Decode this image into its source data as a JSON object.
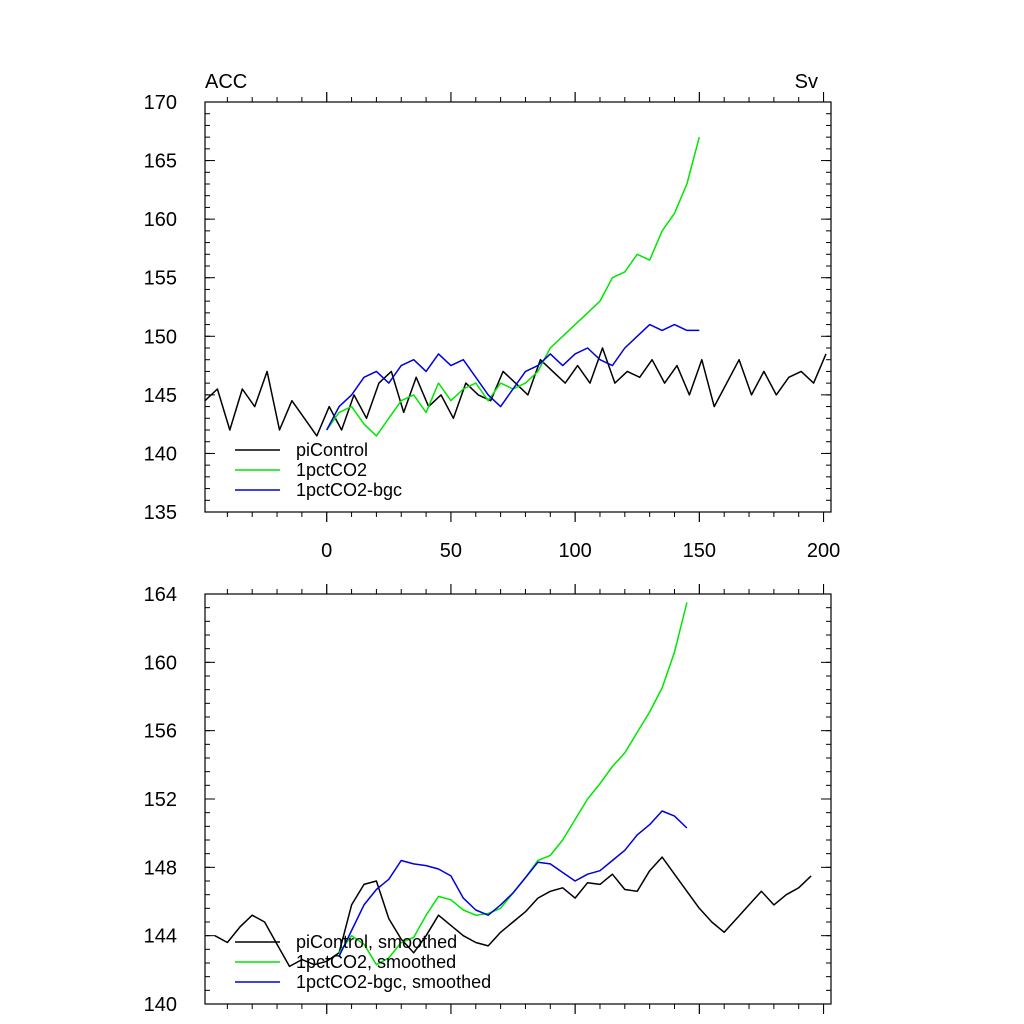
{
  "chart_data": [
    {
      "type": "line",
      "left_title": "ACC",
      "right_title": "Sv",
      "xlim": [
        -49,
        203
      ],
      "ylim": [
        135,
        170
      ],
      "xticks": [
        0,
        50,
        100,
        150,
        200
      ],
      "xtick_labels": [
        "0",
        "50",
        "100",
        "150",
        "200"
      ],
      "yticks": [
        135,
        140,
        145,
        150,
        155,
        160,
        165,
        170
      ],
      "ytick_labels": [
        "135",
        "140",
        "145",
        "150",
        "155",
        "160",
        "165",
        "170"
      ],
      "grid": false,
      "legend_position": "bottom-left",
      "series": [
        {
          "name": "piControl",
          "color": "#000000",
          "x": [
            -49,
            -44,
            -39,
            -34,
            -29,
            -24,
            -19,
            -14,
            -9,
            -4,
            1,
            6,
            11,
            16,
            21,
            26,
            31,
            36,
            41,
            46,
            51,
            56,
            61,
            66,
            71,
            76,
            81,
            86,
            91,
            96,
            101,
            106,
            111,
            116,
            121,
            126,
            131,
            136,
            141,
            146,
            151,
            156,
            161,
            166,
            171,
            176,
            181,
            186,
            191,
            196,
            201
          ],
          "y": [
            144.5,
            145.5,
            142,
            145.5,
            144,
            147,
            142,
            144.5,
            143,
            141.5,
            144,
            142,
            145,
            143,
            146,
            147,
            143.5,
            146.5,
            144,
            145,
            143,
            146,
            145,
            144.5,
            147,
            146,
            145,
            148,
            147,
            146,
            147.5,
            146,
            149,
            146,
            147,
            146.5,
            148,
            146,
            147.5,
            145,
            148,
            144,
            146,
            148,
            145,
            147,
            145,
            146.5,
            147,
            146,
            148.5
          ]
        },
        {
          "name": "1pctCO2",
          "color": "#00e600",
          "x": [
            0,
            5,
            10,
            15,
            20,
            25,
            30,
            35,
            40,
            45,
            50,
            55,
            60,
            65,
            70,
            75,
            80,
            85,
            90,
            95,
            100,
            105,
            110,
            115,
            120,
            125,
            130,
            135,
            140,
            145,
            150
          ],
          "y": [
            142,
            143.5,
            144,
            142.5,
            141.5,
            143,
            144.5,
            145,
            143.5,
            146,
            144.5,
            145.5,
            146,
            144.5,
            146,
            145.5,
            146,
            147,
            149,
            150,
            151,
            152,
            153,
            155,
            155.5,
            157,
            156.5,
            159,
            160.5,
            163,
            167
          ]
        },
        {
          "name": "1pctCO2-bgc",
          "color": "#0000dd",
          "x": [
            0,
            5,
            10,
            15,
            20,
            25,
            30,
            35,
            40,
            45,
            50,
            55,
            60,
            65,
            70,
            75,
            80,
            85,
            90,
            95,
            100,
            105,
            110,
            115,
            120,
            125,
            130,
            135,
            140,
            145,
            150
          ],
          "y": [
            142,
            144,
            145,
            146.5,
            147,
            146,
            147.5,
            148,
            147,
            148.5,
            147.5,
            148,
            146.5,
            145,
            144,
            145.5,
            147,
            147.5,
            148.5,
            147.5,
            148.5,
            149,
            148,
            147.5,
            149,
            150,
            151,
            150.5,
            151,
            150.5,
            150.5
          ]
        }
      ]
    },
    {
      "type": "line",
      "xlim": [
        -49,
        203
      ],
      "ylim": [
        140,
        164
      ],
      "xticks": [
        0,
        50,
        100,
        150,
        200
      ],
      "yticks": [
        140,
        144,
        148,
        152,
        156,
        160,
        164
      ],
      "ytick_labels": [
        "140",
        "144",
        "148",
        "152",
        "156",
        "160",
        "164"
      ],
      "grid": false,
      "legend_position": "bottom-left",
      "series": [
        {
          "name": "piControl, smoothed",
          "color": "#000000",
          "x": [
            -45,
            -40,
            -35,
            -30,
            -25,
            -20,
            -15,
            -10,
            -5,
            0,
            5,
            10,
            15,
            20,
            25,
            30,
            35,
            40,
            45,
            50,
            55,
            60,
            65,
            70,
            75,
            80,
            85,
            90,
            95,
            100,
            105,
            110,
            115,
            120,
            125,
            130,
            135,
            140,
            145,
            150,
            155,
            160,
            165,
            170,
            175,
            180,
            185,
            190,
            195
          ],
          "y": [
            144,
            143.6,
            144.5,
            145.2,
            144.8,
            143.5,
            142.2,
            142.6,
            142.3,
            142.5,
            143,
            145.8,
            147,
            147.2,
            145,
            143.8,
            143,
            144,
            145.2,
            144.6,
            144,
            143.6,
            143.4,
            144.2,
            144.8,
            145.4,
            146.2,
            146.6,
            146.8,
            146.2,
            147.1,
            147,
            147.6,
            146.7,
            146.6,
            147.8,
            148.6,
            147.6,
            146.6,
            145.6,
            144.8,
            144.2,
            145,
            145.8,
            146.6,
            145.8,
            146.4,
            146.8,
            147.5
          ]
        },
        {
          "name": "1pctCO2, smoothed",
          "color": "#00e600",
          "x": [
            5,
            10,
            15,
            20,
            25,
            30,
            35,
            40,
            45,
            50,
            55,
            60,
            65,
            70,
            75,
            80,
            85,
            90,
            95,
            100,
            105,
            110,
            115,
            120,
            125,
            130,
            135,
            140,
            145
          ],
          "y": [
            143,
            144,
            143.5,
            142.3,
            142.7,
            143.6,
            143.9,
            145.2,
            146.3,
            146.1,
            145.5,
            145.2,
            145.3,
            145.6,
            146.5,
            147.4,
            148.4,
            148.7,
            149.6,
            150.8,
            152,
            152.9,
            153.9,
            154.7,
            155.9,
            157.1,
            158.5,
            160.6,
            163.5
          ]
        },
        {
          "name": "1pctCO2-bgc, smoothed",
          "color": "#0000dd",
          "x": [
            5,
            10,
            15,
            20,
            25,
            30,
            35,
            40,
            45,
            50,
            55,
            60,
            65,
            70,
            75,
            80,
            85,
            90,
            95,
            100,
            105,
            110,
            115,
            120,
            125,
            130,
            135,
            140,
            145
          ],
          "y": [
            142.8,
            144.3,
            145.8,
            146.7,
            147.3,
            148.4,
            148.2,
            148.1,
            147.9,
            147.5,
            146.2,
            145.5,
            145.2,
            145.8,
            146.5,
            147.4,
            148.3,
            148.2,
            147.7,
            147.2,
            147.6,
            147.8,
            148.4,
            149,
            149.9,
            150.5,
            151.3,
            151,
            150.3
          ]
        }
      ]
    }
  ]
}
